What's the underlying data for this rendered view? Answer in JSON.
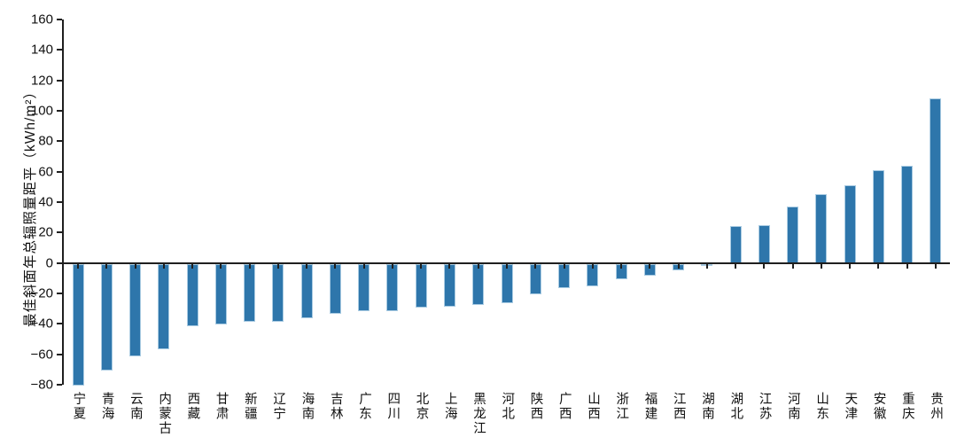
{
  "chart_data": {
    "type": "bar",
    "title": "",
    "xlabel": "",
    "ylabel": "最佳斜面年总辐照量距平（kWh/m²）",
    "ylim": [
      -80,
      160
    ],
    "y_ticks": [
      160,
      140,
      120,
      100,
      80,
      60,
      40,
      20,
      0,
      -20,
      -40,
      -60,
      -80
    ],
    "grid": false,
    "legend_position": "none",
    "categories": [
      "宁夏",
      "青海",
      "云南",
      "内蒙古",
      "西藏",
      "甘肃",
      "新疆",
      "辽宁",
      "海南",
      "吉林",
      "广东",
      "四川",
      "北京",
      "上海",
      "黑龙江",
      "河北",
      "陕西",
      "广西",
      "山西",
      "浙江",
      "福建",
      "江西",
      "湖南",
      "湖北",
      "江苏",
      "河南",
      "山东",
      "天津",
      "安徽",
      "重庆",
      "贵州"
    ],
    "values": [
      -80,
      -70,
      -61,
      -56,
      -41,
      -40,
      -38,
      -38,
      -36,
      -33,
      -31,
      -31,
      -29,
      -28,
      -27,
      -26,
      -20,
      -16,
      -15,
      -10,
      -8,
      -4,
      -1,
      24,
      25,
      37,
      45,
      51,
      61,
      64,
      108
    ],
    "series_name": "最佳斜面年总辐照量距平",
    "bar_color": "#2e76ab",
    "bar_edge_color": "#a9cbe2",
    "axis_color": "#1f1f1f"
  }
}
